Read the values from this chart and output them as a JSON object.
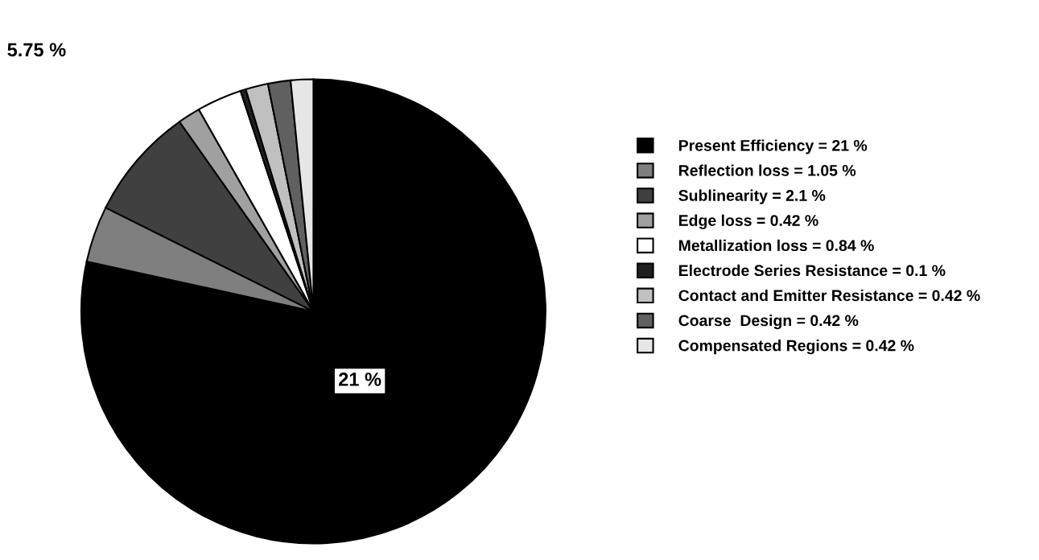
{
  "chart_data": {
    "type": "pie",
    "categories": [
      "Present Efficiency = 21 %",
      "Reflection loss = 1.05 %",
      "Sublinearity = 2.1 %",
      "Edge loss = 0.42 %",
      "Metallization loss = 0.84 %",
      "Electrode Series Resistance = 0.1 %",
      "Contact and Emitter Resistance = 0.42 %",
      "Coarse  Design = 0.42 %",
      "Compensated Regions = 0.42 %"
    ],
    "values": [
      21,
      1.05,
      2.1,
      0.42,
      0.84,
      0.1,
      0.42,
      0.42,
      0.42
    ],
    "colors": [
      "#000000",
      "#7f7f7f",
      "#404040",
      "#a0a0a0",
      "#ffffff",
      "#202020",
      "#c0c0c0",
      "#606060",
      "#e6e6e6"
    ],
    "annotations": [
      "21 %",
      "5.75 %"
    ],
    "legend": "right"
  }
}
